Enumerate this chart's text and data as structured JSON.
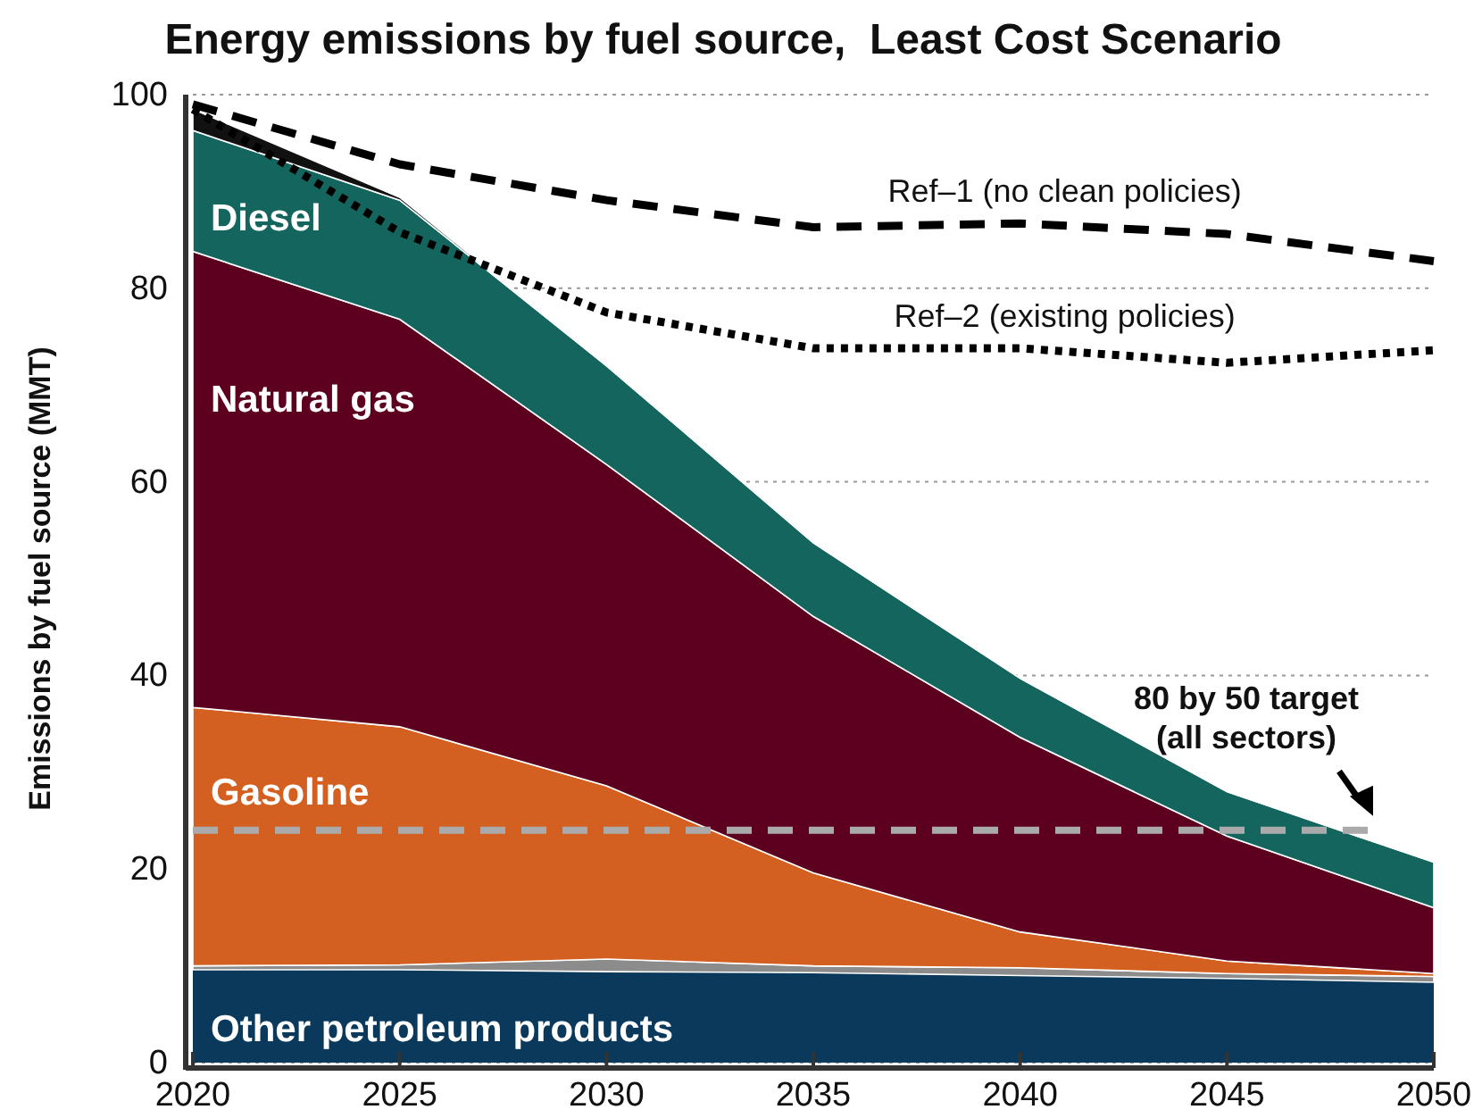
{
  "chart_data": {
    "type": "area",
    "title": "Energy emissions by fuel source,  Least Cost Scenario",
    "ylabel": "Emissions by fuel source (MMT)",
    "x": [
      2020,
      2025,
      2030,
      2035,
      2040,
      2045,
      2050
    ],
    "stacked": true,
    "series": [
      {
        "name": "Other petroleum products",
        "color": "#0a395b",
        "values": [
          9.6,
          9.6,
          9.4,
          9.3,
          9.0,
          8.7,
          8.3
        ]
      },
      {
        "color": "#8c8c8c",
        "values": [
          0.4,
          0.5,
          1.3,
          0.7,
          0.8,
          0.5,
          0.6
        ]
      },
      {
        "name": "Gasoline",
        "color": "#d36020",
        "values": [
          26.7,
          24.6,
          17.9,
          9.6,
          3.7,
          1.3,
          0.3
        ]
      },
      {
        "name": "Natural gas",
        "color": "#5d0020",
        "values": [
          47.1,
          42.1,
          33.2,
          26.5,
          20.1,
          12.9,
          6.8
        ]
      },
      {
        "name": "Diesel",
        "color": "#14655e",
        "values": [
          12.5,
          12.3,
          10.2,
          7.6,
          6.1,
          4.6,
          4.7
        ]
      },
      {
        "color": "#111111",
        "values": [
          2.2,
          0.3,
          0,
          0,
          0,
          0,
          0
        ]
      },
      {
        "name": "Ref–1 (no clean policies)",
        "type": "line",
        "line_style": "dashed",
        "color": "#000000",
        "values": [
          99.0,
          92.8,
          89.1,
          86.3,
          86.7,
          85.6,
          82.8
        ]
      },
      {
        "name": "Ref–2 (existing policies)",
        "type": "line",
        "line_style": "dotted",
        "color": "#000000",
        "values": [
          98.5,
          85.8,
          77.5,
          73.8,
          73.8,
          72.3,
          73.6
        ]
      }
    ],
    "xlim": [
      2020,
      2050
    ],
    "ylim": [
      0,
      100
    ],
    "xticks": [
      2020,
      2025,
      2030,
      2035,
      2040,
      2045,
      2050
    ],
    "yticks": [
      0,
      20,
      40,
      60,
      80,
      100
    ],
    "grid": "y",
    "legend": false,
    "ref_lines": [
      {
        "axis": "y",
        "value": 24,
        "label": "80 by 50 target (all sectors)",
        "color": "#aaaaaa",
        "line_style": "dashed"
      }
    ]
  }
}
